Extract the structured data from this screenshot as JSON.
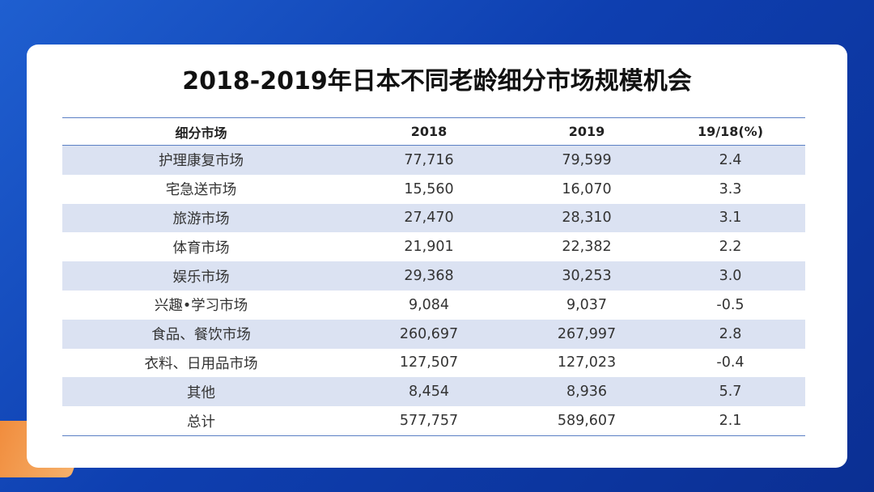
{
  "title": "2018-2019年日本不同老龄细分市场规模机会",
  "table": {
    "header": [
      "细分市场",
      "2018",
      "2019",
      "19/18(%)"
    ],
    "rows": [
      [
        "护理康复市场",
        "77,716",
        "79,599",
        "2.4"
      ],
      [
        "宅急送市场",
        "15,560",
        "16,070",
        "3.3"
      ],
      [
        "旅游市场",
        "27,470",
        "28,310",
        "3.1"
      ],
      [
        "体育市场",
        "21,901",
        "22,382",
        "2.2"
      ],
      [
        "娱乐市场",
        "29,368",
        "30,253",
        "3.0"
      ],
      [
        "兴趣•学习市场",
        "9,084",
        "9,037",
        "-0.5"
      ],
      [
        "食品、餐饮市场",
        "260,697",
        "267,997",
        "2.8"
      ],
      [
        "衣料、日用品市场",
        "127,507",
        "127,023",
        "-0.4"
      ],
      [
        "其他",
        "8,454",
        "8,936",
        "5.7"
      ],
      [
        "总计",
        "577,757",
        "589,607",
        "2.1"
      ]
    ]
  }
}
